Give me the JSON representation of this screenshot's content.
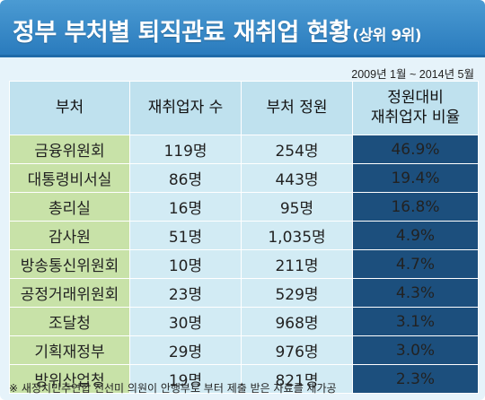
{
  "title": "정부 부처별 퇴직관료 재취업 현황",
  "title_sub": "(상위 9위)",
  "date_range": "2009년 1월 ~ 2014년 5월",
  "colors": {
    "title_bar": "#2a7bbd",
    "header_bg": "#bfe1ee",
    "dept_bg": "#c8e2a8",
    "num_bg": "#d2ebf4",
    "rate_bg": "#1c4f7d"
  },
  "chart_data": {
    "type": "table",
    "columns": [
      "부처",
      "재취업자 수",
      "부처 정원",
      "정원대비 재취업자 비율"
    ],
    "rows": [
      {
        "dept": "금융위원회",
        "reemployed": "119명",
        "quota": "254명",
        "ratio": "46.9%"
      },
      {
        "dept": "대통령비서실",
        "reemployed": "86명",
        "quota": "443명",
        "ratio": "19.4%"
      },
      {
        "dept": "총리실",
        "reemployed": "16명",
        "quota": "95명",
        "ratio": "16.8%"
      },
      {
        "dept": "감사원",
        "reemployed": "51명",
        "quota": "1,035명",
        "ratio": "4.9%"
      },
      {
        "dept": "방송통신위원회",
        "reemployed": "10명",
        "quota": "211명",
        "ratio": "4.7%"
      },
      {
        "dept": "공정거래위원회",
        "reemployed": "23명",
        "quota": "529명",
        "ratio": "4.3%"
      },
      {
        "dept": "조달청",
        "reemployed": "30명",
        "quota": "968명",
        "ratio": "3.1%"
      },
      {
        "dept": "기획재정부",
        "reemployed": "29명",
        "quota": "976명",
        "ratio": "3.0%"
      },
      {
        "dept": "방위산업청",
        "reemployed": "19명",
        "quota": "821명",
        "ratio": "2.3%"
      }
    ]
  },
  "header": {
    "col_dept": "부처",
    "col_reemployed": "재취업자 수",
    "col_quota": "부처 정원",
    "col_ratio_line1": "정원대비",
    "col_ratio_line2": "재취업자 비율"
  },
  "footnote": "※ 새정치민주연합 진선미 의원이 안행부로 부터 제출 받은 자료를 재가공"
}
